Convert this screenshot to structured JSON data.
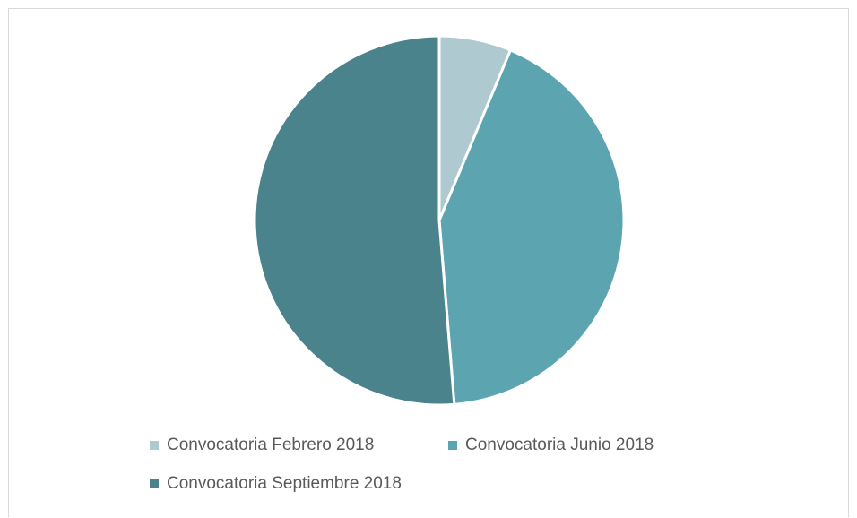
{
  "chart_data": {
    "type": "pie",
    "title": "",
    "categories": [
      "Convocatoria Febrero 2018",
      "Convocatoria Junio 2018",
      "Convocatoria Septiembre 2018"
    ],
    "values": [
      6.3,
      42.4,
      51.3
    ],
    "unit": "%",
    "colors": [
      "#afc9d0",
      "#5ba4b0",
      "#4a838b"
    ],
    "legend_position": "bottom"
  }
}
